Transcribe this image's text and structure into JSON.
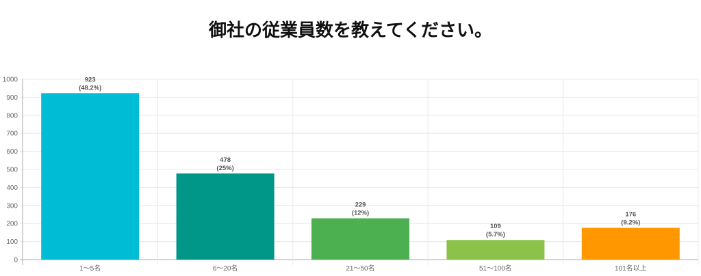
{
  "title": "御社の従業員数を教えてください。",
  "chart_data": {
    "type": "bar",
    "title": "御社の従業員数を教えてください。",
    "categories": [
      "1〜5名",
      "6〜20名",
      "21〜50名",
      "51〜100名",
      "101名以上"
    ],
    "values": [
      923,
      478,
      229,
      109,
      176
    ],
    "data_labels": [
      "(48.2%)",
      "(25%)",
      "(12%)",
      "(5.7%)",
      "(9.2%)"
    ],
    "colors": [
      "#00BCD4",
      "#009688",
      "#4CAF50",
      "#8BC34A",
      "#FF9800"
    ],
    "ylim": [
      0,
      1000
    ],
    "yticks": [
      0,
      100,
      200,
      300,
      400,
      500,
      600,
      700,
      800,
      900,
      1000
    ],
    "grid": true,
    "xlabel": "",
    "ylabel": ""
  }
}
